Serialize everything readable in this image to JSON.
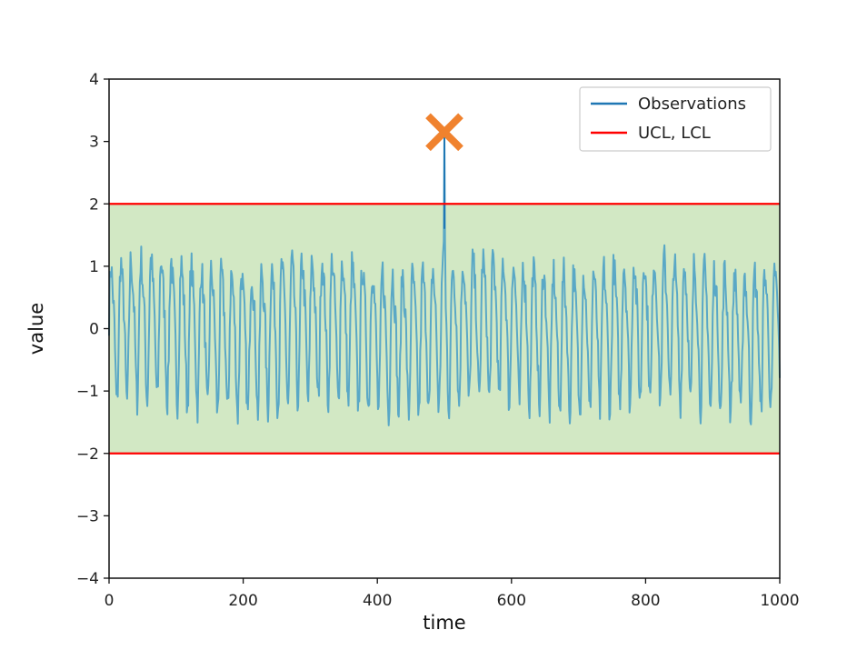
{
  "chart_data": {
    "type": "line",
    "title": "",
    "xlabel": "time",
    "ylabel": "value",
    "xlim": [
      0,
      1000
    ],
    "ylim": [
      -4,
      4
    ],
    "x_ticks": [
      0,
      200,
      400,
      600,
      800,
      1000
    ],
    "y_ticks": [
      -4,
      -3,
      -2,
      -1,
      0,
      1,
      2,
      3,
      4
    ],
    "x_tick_labels": [
      "0",
      "200",
      "400",
      "600",
      "800",
      "1000"
    ],
    "y_tick_labels": [
      "−4",
      "−3",
      "−2",
      "−1",
      "0",
      "1",
      "2",
      "3",
      "4"
    ],
    "control_limits": {
      "ucl": 2,
      "lcl": -2
    },
    "series": [
      {
        "name": "Observations",
        "color": "#1f77b4",
        "shown_color": "#5aa8c6",
        "points": 1000,
        "pattern": "periodic oscillation, roughly between -1.5 and 1.5",
        "cycle_length": 15,
        "spike": {
          "x": 500,
          "y": 3.1
        }
      },
      {
        "name": "UCL, LCL",
        "color": "#ff0000"
      }
    ],
    "band_color": "#d2e8c4",
    "anomaly_marker": {
      "x": 500,
      "y": 3.15,
      "symbol": "x",
      "color": "#f0822e"
    },
    "legend": {
      "position": "top-right",
      "entries": [
        {
          "label": "Observations",
          "color": "#1f77b4"
        },
        {
          "label": "UCL, LCL",
          "color": "#ff0000"
        }
      ]
    },
    "grid": false
  }
}
